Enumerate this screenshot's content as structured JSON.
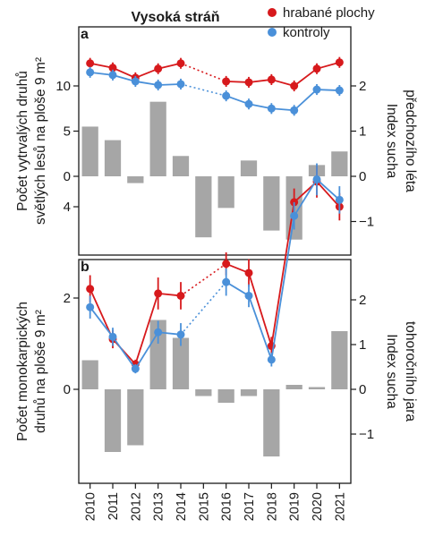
{
  "title": "Vysoká stráň",
  "legend": [
    {
      "label": "hrabané plochy",
      "color": "#d7191c"
    },
    {
      "label": "kontroly",
      "color": "#4a90d9"
    }
  ],
  "chart_data": [
    {
      "type": "bar+line",
      "panel": "a",
      "categories": [
        "2010",
        "2011",
        "2012",
        "2013",
        "2014",
        "2015",
        "2016",
        "2017",
        "2018",
        "2019",
        "2020",
        "2021"
      ],
      "ylabel_left_lines": [
        "Počet vytrvalých druhů",
        "světlých lesů na ploše 9 m²"
      ],
      "ylabel_right_lines": [
        "Index sucha",
        "předchozího léta"
      ],
      "left_ticks": [
        0,
        5,
        10
      ],
      "right_ticks": [
        -1,
        0,
        1,
        2
      ],
      "bars_right_axis": [
        1.1,
        0.8,
        -0.15,
        1.65,
        0.45,
        -1.35,
        -0.7,
        0.35,
        -1.2,
        -1.4,
        0.25,
        0.55
      ],
      "series": [
        {
          "name": "hrabané plochy",
          "values": [
            12.5,
            12.0,
            10.9,
            11.9,
            12.5,
            null,
            10.5,
            10.4,
            10.7,
            10.0,
            11.9,
            12.6
          ],
          "err": [
            0.6,
            0.6,
            0.6,
            0.6,
            0.6,
            null,
            0.6,
            0.6,
            0.6,
            0.6,
            0.6,
            0.6
          ]
        },
        {
          "name": "kontroly",
          "values": [
            11.5,
            11.2,
            10.5,
            10.1,
            10.2,
            null,
            8.9,
            8.0,
            7.5,
            7.3,
            9.6,
            9.5
          ],
          "err": [
            0.6,
            0.6,
            0.6,
            0.6,
            0.6,
            null,
            0.6,
            0.6,
            0.6,
            0.6,
            0.6,
            0.6
          ]
        }
      ]
    },
    {
      "type": "bar+line",
      "panel": "b",
      "categories": [
        "2010",
        "2011",
        "2012",
        "2013",
        "2014",
        "2015",
        "2016",
        "2017",
        "2018",
        "2019",
        "2020",
        "2021"
      ],
      "ylabel_left_lines": [
        "Počet monokarpických",
        "druhů na ploše 9 m²"
      ],
      "ylabel_right_lines": [
        "Index sucha",
        "tohoročního jara"
      ],
      "left_ticks": [
        0,
        2,
        4
      ],
      "right_ticks": [
        -1,
        0,
        1,
        2
      ],
      "bars_right_axis": [
        0.65,
        -1.4,
        -1.25,
        1.55,
        1.15,
        -0.15,
        -0.3,
        -0.15,
        -1.5,
        0.1,
        0.05,
        1.3
      ],
      "series": [
        {
          "name": "hrabané plochy",
          "values": [
            2.2,
            1.1,
            0.55,
            2.1,
            2.05,
            null,
            2.75,
            2.55,
            0.95,
            4.1,
            4.55,
            4.0
          ],
          "err": [
            0.3,
            0.2,
            0.1,
            0.35,
            0.3,
            null,
            0.25,
            0.3,
            0.2,
            0.3,
            0.35,
            0.3
          ]
        },
        {
          "name": "kontroly",
          "values": [
            1.8,
            1.15,
            0.45,
            1.25,
            1.2,
            null,
            2.35,
            2.05,
            0.65,
            3.8,
            4.6,
            4.15
          ],
          "err": [
            0.25,
            0.2,
            0.1,
            0.25,
            0.25,
            null,
            0.3,
            0.25,
            0.15,
            0.3,
            0.35,
            0.3
          ]
        }
      ]
    }
  ]
}
